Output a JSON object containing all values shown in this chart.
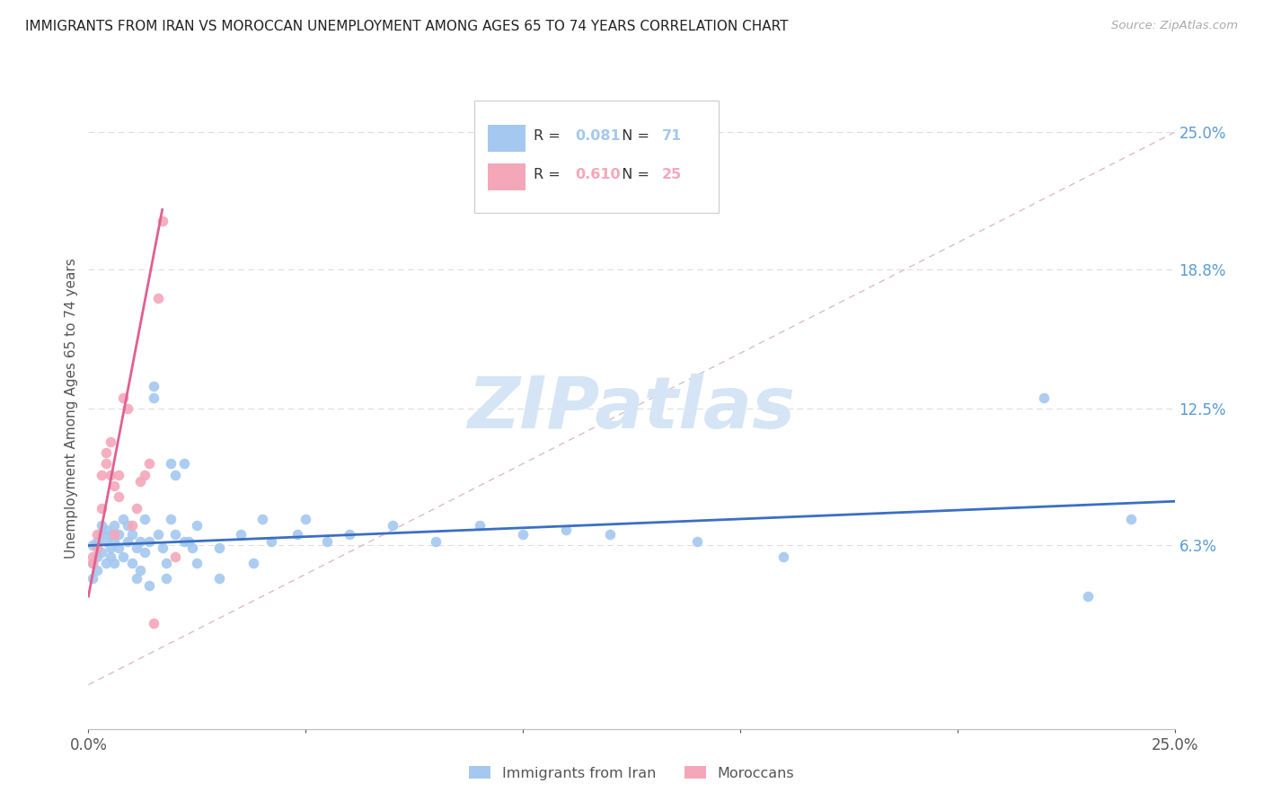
{
  "title": "IMMIGRANTS FROM IRAN VS MOROCCAN UNEMPLOYMENT AMONG AGES 65 TO 74 YEARS CORRELATION CHART",
  "source": "Source: ZipAtlas.com",
  "ylabel": "Unemployment Among Ages 65 to 74 years",
  "xlim": [
    0.0,
    0.25
  ],
  "ylim": [
    -0.02,
    0.27
  ],
  "plot_ylim": [
    -0.02,
    0.27
  ],
  "yticks": [
    0.063,
    0.125,
    0.188,
    0.25
  ],
  "ytick_labels": [
    "6.3%",
    "12.5%",
    "18.8%",
    "25.0%"
  ],
  "xticks": [
    0.0,
    0.05,
    0.1,
    0.15,
    0.2,
    0.25
  ],
  "xtick_labels": [
    "0.0%",
    "",
    "",
    "",
    "",
    "25.0%"
  ],
  "legend_entries": [
    {
      "color": "#a4c8ef",
      "label": "Immigrants from Iran",
      "R": "0.081",
      "N": "71"
    },
    {
      "color": "#f4a7b9",
      "label": "Moroccans",
      "R": "0.610",
      "N": "25"
    }
  ],
  "blue_scatter": [
    [
      0.001,
      0.063
    ],
    [
      0.001,
      0.055
    ],
    [
      0.001,
      0.048
    ],
    [
      0.002,
      0.065
    ],
    [
      0.002,
      0.058
    ],
    [
      0.002,
      0.052
    ],
    [
      0.003,
      0.068
    ],
    [
      0.003,
      0.06
    ],
    [
      0.003,
      0.072
    ],
    [
      0.004,
      0.065
    ],
    [
      0.004,
      0.055
    ],
    [
      0.004,
      0.07
    ],
    [
      0.005,
      0.068
    ],
    [
      0.005,
      0.062
    ],
    [
      0.005,
      0.058
    ],
    [
      0.006,
      0.065
    ],
    [
      0.006,
      0.072
    ],
    [
      0.006,
      0.055
    ],
    [
      0.007,
      0.068
    ],
    [
      0.007,
      0.062
    ],
    [
      0.008,
      0.075
    ],
    [
      0.008,
      0.058
    ],
    [
      0.009,
      0.065
    ],
    [
      0.009,
      0.072
    ],
    [
      0.01,
      0.068
    ],
    [
      0.01,
      0.055
    ],
    [
      0.011,
      0.062
    ],
    [
      0.011,
      0.048
    ],
    [
      0.012,
      0.065
    ],
    [
      0.012,
      0.052
    ],
    [
      0.013,
      0.075
    ],
    [
      0.013,
      0.06
    ],
    [
      0.014,
      0.065
    ],
    [
      0.014,
      0.045
    ],
    [
      0.015,
      0.135
    ],
    [
      0.015,
      0.13
    ],
    [
      0.016,
      0.068
    ],
    [
      0.017,
      0.062
    ],
    [
      0.018,
      0.055
    ],
    [
      0.018,
      0.048
    ],
    [
      0.019,
      0.075
    ],
    [
      0.019,
      0.1
    ],
    [
      0.02,
      0.095
    ],
    [
      0.02,
      0.068
    ],
    [
      0.022,
      0.1
    ],
    [
      0.022,
      0.065
    ],
    [
      0.023,
      0.065
    ],
    [
      0.024,
      0.062
    ],
    [
      0.025,
      0.055
    ],
    [
      0.025,
      0.072
    ],
    [
      0.03,
      0.062
    ],
    [
      0.03,
      0.048
    ],
    [
      0.035,
      0.068
    ],
    [
      0.038,
      0.055
    ],
    [
      0.04,
      0.075
    ],
    [
      0.042,
      0.065
    ],
    [
      0.048,
      0.068
    ],
    [
      0.05,
      0.075
    ],
    [
      0.055,
      0.065
    ],
    [
      0.06,
      0.068
    ],
    [
      0.07,
      0.072
    ],
    [
      0.08,
      0.065
    ],
    [
      0.09,
      0.072
    ],
    [
      0.1,
      0.068
    ],
    [
      0.11,
      0.07
    ],
    [
      0.12,
      0.068
    ],
    [
      0.14,
      0.065
    ],
    [
      0.16,
      0.058
    ],
    [
      0.22,
      0.13
    ],
    [
      0.23,
      0.04
    ],
    [
      0.24,
      0.075
    ]
  ],
  "pink_scatter": [
    [
      0.001,
      0.055
    ],
    [
      0.001,
      0.058
    ],
    [
      0.002,
      0.062
    ],
    [
      0.002,
      0.068
    ],
    [
      0.003,
      0.08
    ],
    [
      0.003,
      0.095
    ],
    [
      0.004,
      0.105
    ],
    [
      0.004,
      0.1
    ],
    [
      0.005,
      0.095
    ],
    [
      0.005,
      0.11
    ],
    [
      0.006,
      0.068
    ],
    [
      0.006,
      0.09
    ],
    [
      0.007,
      0.095
    ],
    [
      0.007,
      0.085
    ],
    [
      0.008,
      0.13
    ],
    [
      0.009,
      0.125
    ],
    [
      0.01,
      0.072
    ],
    [
      0.011,
      0.08
    ],
    [
      0.012,
      0.092
    ],
    [
      0.013,
      0.095
    ],
    [
      0.014,
      0.1
    ],
    [
      0.015,
      0.028
    ],
    [
      0.016,
      0.175
    ],
    [
      0.017,
      0.21
    ],
    [
      0.02,
      0.058
    ]
  ],
  "blue_line_x": [
    0.0,
    0.25
  ],
  "blue_line_y": [
    0.063,
    0.083
  ],
  "pink_line_x": [
    0.0,
    0.017
  ],
  "pink_line_y": [
    0.04,
    0.215
  ],
  "diag_line_color": "#ddbbcc",
  "scatter_color_blue": "#a4c8ef",
  "scatter_color_pink": "#f4a7b9",
  "line_color_blue": "#3a6fc4",
  "line_color_pink": "#e06090",
  "grid_color": "#dddddd",
  "watermark_color": "#d5e5f5",
  "right_tick_color": "#5b9bd5",
  "bg_color": "#ffffff"
}
